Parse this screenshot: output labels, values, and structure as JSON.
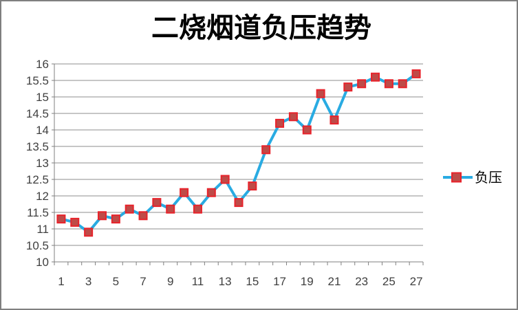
{
  "window": {
    "background": "#ffffff",
    "frame_border_color": "#7f7f7f"
  },
  "chart_data": {
    "type": "line",
    "title": "二烧烟道负压趋势",
    "xlabel": "",
    "ylabel": "",
    "ylim": [
      10,
      16
    ],
    "y_step": 0.5,
    "grid": true,
    "legend": {
      "label": "负压",
      "position": "right"
    },
    "x": [
      1,
      2,
      3,
      4,
      5,
      6,
      7,
      8,
      9,
      10,
      11,
      12,
      13,
      14,
      15,
      16,
      17,
      18,
      19,
      20,
      21,
      22,
      23,
      24,
      25,
      26,
      27
    ],
    "x_tick_labels": [
      "1",
      "3",
      "5",
      "7",
      "9",
      "11",
      "13",
      "15",
      "17",
      "19",
      "21",
      "23",
      "25",
      "27"
    ],
    "y_tick_labels": [
      "16",
      "15.5",
      "15",
      "14.5",
      "14",
      "13.5",
      "13",
      "12.5",
      "12",
      "11.5",
      "11",
      "10.5",
      "10"
    ],
    "series": [
      {
        "name": "负压",
        "values": [
          11.3,
          11.2,
          10.9,
          11.4,
          11.3,
          11.6,
          11.4,
          11.8,
          11.6,
          12.1,
          11.6,
          12.1,
          12.5,
          11.8,
          12.3,
          13.4,
          14.2,
          14.4,
          14.0,
          15.1,
          14.3,
          15.3,
          15.4,
          15.6,
          15.4,
          15.4,
          15.7
        ]
      }
    ],
    "style": {
      "line_color": "#29abe2",
      "marker_fill": "#be4b48",
      "marker_border": "#e8232b",
      "grid_color": "#8e8e8e",
      "axis_color": "#7f7f7f",
      "label_color": "#3f3f3f",
      "title_color": "#000000"
    }
  }
}
